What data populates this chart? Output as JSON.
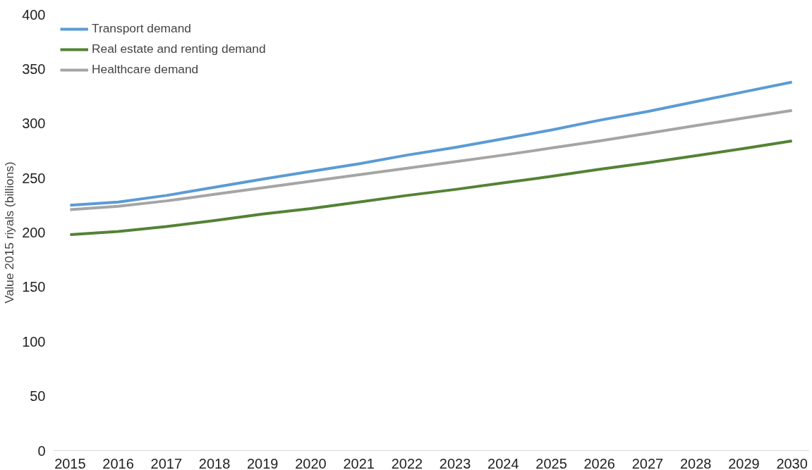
{
  "chart_data": {
    "type": "line",
    "ylabel": "Value 2015 riyals (billions)",
    "x": [
      2015,
      2016,
      2017,
      2018,
      2019,
      2020,
      2021,
      2022,
      2023,
      2024,
      2025,
      2026,
      2027,
      2028,
      2029,
      2030
    ],
    "xlim": [
      2014.65,
      2030.35
    ],
    "xticks": [
      2015,
      2016,
      2017,
      2018,
      2019,
      2020,
      2021,
      2022,
      2023,
      2024,
      2025,
      2026,
      2027,
      2028,
      2029,
      2030
    ],
    "ylim": [
      0,
      400
    ],
    "yticks": [
      0,
      50,
      100,
      150,
      200,
      250,
      300,
      350,
      400
    ],
    "series": [
      {
        "name": "Transport demand",
        "color": "#5b9bd5",
        "values": [
          225,
          228,
          234,
          241.5,
          249,
          256,
          263,
          271,
          278,
          286,
          294,
          303,
          311,
          320,
          329,
          338
        ]
      },
      {
        "name": "Real estate and renting demand",
        "color": "#548235",
        "values": [
          198,
          201,
          205.5,
          211,
          217,
          222,
          228,
          234,
          239.5,
          245.5,
          251.5,
          258,
          264,
          270.5,
          277,
          284
        ]
      },
      {
        "name": "Healthcare demand",
        "color": "#a5a5a5",
        "values": [
          221,
          224,
          229,
          235,
          241,
          247,
          253,
          259,
          265,
          271,
          277.5,
          284,
          291,
          298,
          305,
          312
        ]
      }
    ],
    "legend": "top left",
    "grid": false,
    "line_style": "solid",
    "marker": "none"
  }
}
